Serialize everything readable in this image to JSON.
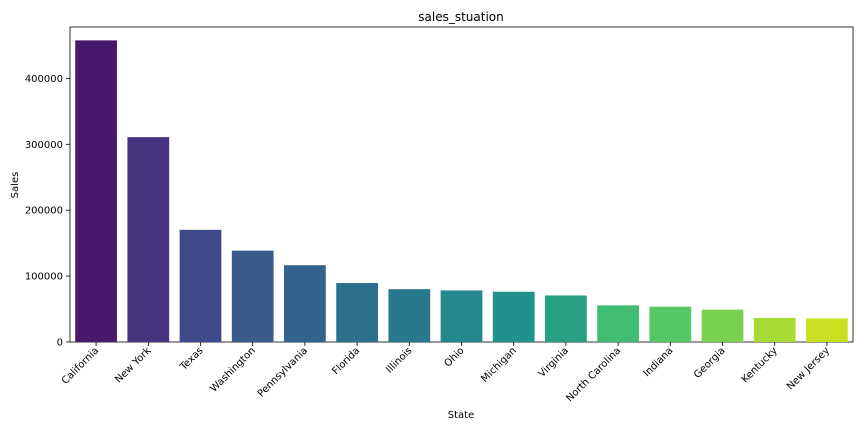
{
  "chart_data": {
    "type": "bar",
    "title": "sales_stuation",
    "xlabel": "State",
    "ylabel": "Sales",
    "categories": [
      "California",
      "New York",
      "Texas",
      "Washington",
      "Pennsylvania",
      "Florida",
      "Illinois",
      "Ohio",
      "Michigan",
      "Virginia",
      "North Carolina",
      "Indiana",
      "Georgia",
      "Kentucky",
      "New Jersey"
    ],
    "values": [
      457688,
      310876,
      170188,
      138641,
      116512,
      89474,
      80166,
      78258,
      76270,
      70637,
      55603,
      53555,
      49096,
      36592,
      35764
    ],
    "ylim": [
      0,
      478000
    ],
    "yticks": [
      0,
      100000,
      200000,
      300000,
      400000
    ],
    "grid": false,
    "legend": "none",
    "colors": [
      "#481a6c",
      "#463480",
      "#3f4a8a",
      "#3a5c8c",
      "#33628d",
      "#2d708e",
      "#29798e",
      "#24878e",
      "#21918c",
      "#27a081",
      "#40bd72",
      "#56c667",
      "#7ad151",
      "#a8db34",
      "#c8e020"
    ]
  }
}
